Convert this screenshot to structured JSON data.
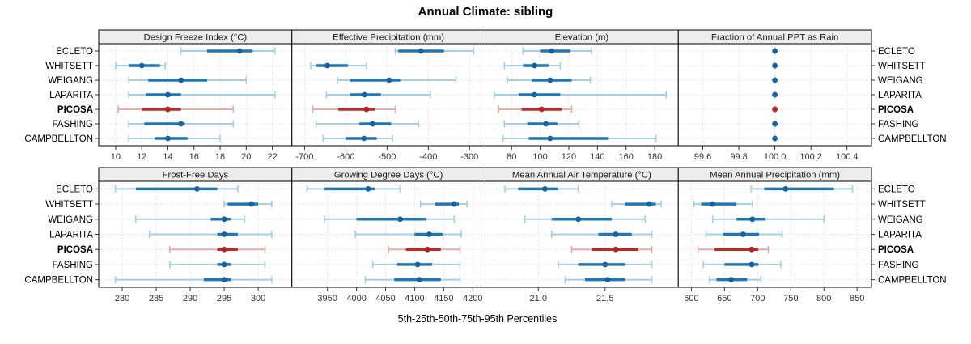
{
  "title": "Annual Climate: sibling",
  "caption": "5th-25th-50th-75th-95th Percentiles",
  "categories": [
    "ECLETO",
    "WHITSETT",
    "WEIGANG",
    "LAPARITA",
    "PICOSA",
    "FASHING",
    "CAMPBELLTON"
  ],
  "highlight_category": "PICOSA",
  "percentile_labels": [
    "5th",
    "25th",
    "50th",
    "75th",
    "95th"
  ],
  "colors": {
    "normal_dot": "#16629e",
    "normal_thick": "#1f78b4",
    "normal_light": "#a6cee3",
    "highlight_dot": "#ad2524",
    "highlight_thick": "#b2302c",
    "highlight_light": "#e4aba7",
    "strip_bg": "#ededed",
    "panel_border": "#000000",
    "grid": "#d4d4d4",
    "tick_text": "#333333",
    "label_text": "#000000"
  },
  "chart_data": {
    "type": "dotplot-percentiles",
    "layout": "2 rows x 4 columns, free x scales",
    "legend_position": "none",
    "grid": "dotted",
    "panels": [
      {
        "slug": "design-freeze-index",
        "title": "Design Freeze Index (°C)",
        "ticks": [
          10,
          12,
          14,
          16,
          18,
          20,
          22
        ],
        "tick_labels": [
          "10",
          "12",
          "14",
          "16",
          "18",
          "20",
          "22"
        ],
        "xlim": [
          9.2,
          23.0
        ],
        "series": [
          {
            "name": "ECLETO",
            "p": [
              15,
              17,
              19.5,
              20.5,
              22.2
            ]
          },
          {
            "name": "WHITSETT",
            "p": [
              10,
              11,
              12,
              13.4,
              13.8
            ]
          },
          {
            "name": "WEIGANG",
            "p": [
              11,
              12.5,
              15,
              17,
              20
            ]
          },
          {
            "name": "LAPARITA",
            "p": [
              11,
              12.3,
              14,
              15,
              22.2
            ]
          },
          {
            "name": "PICOSA",
            "p": [
              10.2,
              12,
              14,
              15,
              19
            ]
          },
          {
            "name": "FASHING",
            "p": [
              11,
              12.2,
              15,
              15.3,
              19
            ]
          },
          {
            "name": "CAMPBELLTON",
            "p": [
              11,
              13,
              14,
              15.5,
              18
            ]
          }
        ]
      },
      {
        "slug": "effective-precipitation",
        "title": "Effective Precipitation (mm)",
        "ticks": [
          -700,
          -600,
          -500,
          -400,
          -300
        ],
        "tick_labels": [
          "-700",
          "-600",
          "-500",
          "-400",
          "-300"
        ],
        "xlim": [
          -715,
          -278
        ],
        "series": [
          {
            "name": "ECLETO",
            "p": [
              -480,
              -473,
              -418,
              -362,
              -290
            ]
          },
          {
            "name": "WHITSETT",
            "p": [
              -685,
              -672,
              -645,
              -595,
              -550
            ]
          },
          {
            "name": "WEIGANG",
            "p": [
              -620,
              -590,
              -495,
              -468,
              -333
            ]
          },
          {
            "name": "LAPARITA",
            "p": [
              -647,
              -590,
              -555,
              -515,
              -395
            ]
          },
          {
            "name": "PICOSA",
            "p": [
              -680,
              -618,
              -550,
              -528,
              -480
            ]
          },
          {
            "name": "FASHING",
            "p": [
              -672,
              -567,
              -535,
              -490,
              -424
            ]
          },
          {
            "name": "CAMPBELLTON",
            "p": [
              -655,
              -600,
              -556,
              -525,
              -487
            ]
          }
        ]
      },
      {
        "slug": "elevation",
        "title": "Elevation (m)",
        "ticks": [
          80,
          100,
          120,
          140,
          160,
          180
        ],
        "tick_labels": [
          "80",
          "100",
          "120",
          "140",
          "160",
          "180"
        ],
        "xlim": [
          66,
          192
        ],
        "series": [
          {
            "name": "ECLETO",
            "p": [
              88,
              100,
              108,
              121,
              136
            ]
          },
          {
            "name": "WHITSETT",
            "p": [
              75,
              88,
              96,
              106,
              114
            ]
          },
          {
            "name": "WEIGANG",
            "p": [
              77,
              94,
              107,
              122,
              135
            ]
          },
          {
            "name": "LAPARITA",
            "p": [
              68,
              85,
              96,
              114,
              188
            ]
          },
          {
            "name": "PICOSA",
            "p": [
              71,
              87,
              101,
              115,
              122
            ]
          },
          {
            "name": "FASHING",
            "p": [
              75,
              91,
              104,
              112,
              127
            ]
          },
          {
            "name": "CAMPBELLTON",
            "p": [
              74,
              92,
              107,
              148,
              181
            ]
          }
        ]
      },
      {
        "slug": "fraction-annual-ppt-rain",
        "title": "Fraction of Annual PPT as Rain",
        "ticks": [
          99.6,
          99.8,
          100.0,
          100.2,
          100.4
        ],
        "tick_labels": [
          "99.6",
          "99.8",
          "100.0",
          "100.2",
          "100.4"
        ],
        "xlim": [
          99.5,
          100.5
        ],
        "series": [
          {
            "name": "ECLETO",
            "p": [
              100,
              100,
              100,
              100,
              100
            ]
          },
          {
            "name": "WHITSETT",
            "p": [
              100,
              100,
              100,
              100,
              100
            ]
          },
          {
            "name": "WEIGANG",
            "p": [
              100,
              100,
              100,
              100,
              100
            ]
          },
          {
            "name": "LAPARITA",
            "p": [
              100,
              100,
              100,
              100,
              100
            ]
          },
          {
            "name": "PICOSA",
            "p": [
              100,
              100,
              100,
              100,
              100
            ]
          },
          {
            "name": "FASHING",
            "p": [
              100,
              100,
              100,
              100,
              100
            ]
          },
          {
            "name": "CAMPBELLTON",
            "p": [
              100,
              100,
              100,
              100,
              100
            ]
          }
        ]
      },
      {
        "slug": "frost-free-days",
        "title": "Frost-Free Days",
        "ticks": [
          280,
          285,
          290,
          295,
          300
        ],
        "tick_labels": [
          "280",
          "285",
          "290",
          "295",
          "300"
        ],
        "xlim": [
          277.5,
          304
        ],
        "series": [
          {
            "name": "ECLETO",
            "p": [
              279,
              282,
              291,
              294,
              297
            ]
          },
          {
            "name": "WHITSETT",
            "p": [
              295,
              295.5,
              299,
              300,
              302
            ]
          },
          {
            "name": "WEIGANG",
            "p": [
              282,
              293,
              295,
              296,
              298
            ]
          },
          {
            "name": "LAPARITA",
            "p": [
              284,
              294,
              295,
              297,
              302
            ]
          },
          {
            "name": "PICOSA",
            "p": [
              287,
              294,
              295,
              297,
              301
            ]
          },
          {
            "name": "FASHING",
            "p": [
              287,
              294,
              295,
              296,
              301
            ]
          },
          {
            "name": "CAMPBELLTON",
            "p": [
              279,
              292,
              295,
              296,
              302
            ]
          }
        ]
      },
      {
        "slug": "growing-degree-days",
        "title": "Growing Degree Days (°C)",
        "ticks": [
          3950,
          4000,
          4050,
          4100,
          4150,
          4200
        ],
        "tick_labels": [
          "3950",
          "4000",
          "4050",
          "4100",
          "4150",
          "4200"
        ],
        "xlim": [
          3900,
          4210
        ],
        "series": [
          {
            "name": "ECLETO",
            "p": [
              3915,
              3945,
              4020,
              4032,
              4075
            ]
          },
          {
            "name": "WHITSETT",
            "p": [
              4110,
              4135,
              4168,
              4176,
              4190
            ]
          },
          {
            "name": "WEIGANG",
            "p": [
              3945,
              4000,
              4075,
              4120,
              4168
            ]
          },
          {
            "name": "LAPARITA",
            "p": [
              3998,
              4100,
              4125,
              4148,
              4180
            ]
          },
          {
            "name": "PICOSA",
            "p": [
              4055,
              4085,
              4122,
              4145,
              4178
            ]
          },
          {
            "name": "FASHING",
            "p": [
              4028,
              4070,
              4105,
              4130,
              4178
            ]
          },
          {
            "name": "CAMPBELLTON",
            "p": [
              4015,
              4065,
              4108,
              4145,
              4178
            ]
          }
        ]
      },
      {
        "slug": "mean-annual-air-temperature",
        "title": "Mean Annual Air Temperature (°C)",
        "ticks": [
          21.0,
          21.5
        ],
        "tick_labels": [
          "21.0",
          "21.5"
        ],
        "xlim": [
          20.65,
          22.0
        ],
        "series": [
          {
            "name": "ECLETO",
            "p": [
              20.75,
              20.85,
              21.05,
              21.15,
              21.3
            ]
          },
          {
            "name": "WHITSETT",
            "p": [
              21.55,
              21.65,
              21.83,
              21.88,
              21.92
            ]
          },
          {
            "name": "WEIGANG",
            "p": [
              20.9,
              21.1,
              21.3,
              21.55,
              21.8
            ]
          },
          {
            "name": "LAPARITA",
            "p": [
              21.1,
              21.45,
              21.58,
              21.7,
              21.85
            ]
          },
          {
            "name": "PICOSA",
            "p": [
              21.25,
              21.4,
              21.58,
              21.75,
              21.85
            ]
          },
          {
            "name": "FASHING",
            "p": [
              21.15,
              21.3,
              21.5,
              21.65,
              21.85
            ]
          },
          {
            "name": "CAMPBELLTON",
            "p": [
              21.2,
              21.35,
              21.52,
              21.65,
              21.85
            ]
          }
        ]
      },
      {
        "slug": "mean-annual-precipitation",
        "title": "Mean Annual Precipitation (mm)",
        "ticks": [
          600,
          650,
          700,
          750,
          800,
          850
        ],
        "tick_labels": [
          "600",
          "650",
          "700",
          "750",
          "800",
          "850"
        ],
        "xlim": [
          590,
          862
        ],
        "series": [
          {
            "name": "ECLETO",
            "p": [
              690,
              710,
              742,
              815,
              843
            ]
          },
          {
            "name": "WHITSETT",
            "p": [
              604,
              615,
              632,
              668,
              692
            ]
          },
          {
            "name": "WEIGANG",
            "p": [
              632,
              668,
              692,
              712,
              800
            ]
          },
          {
            "name": "LAPARITA",
            "p": [
              622,
              648,
              678,
              702,
              737
            ]
          },
          {
            "name": "PICOSA",
            "p": [
              610,
              635,
              691,
              701,
              716
            ]
          },
          {
            "name": "FASHING",
            "p": [
              618,
              650,
              691,
              701,
              735
            ]
          },
          {
            "name": "CAMPBELLTON",
            "p": [
              627,
              638,
              660,
              684,
              705
            ]
          }
        ]
      }
    ]
  }
}
